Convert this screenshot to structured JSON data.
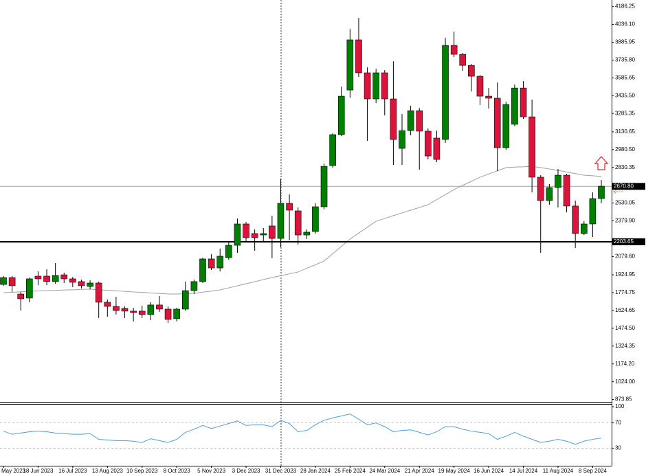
{
  "chart_data": [
    {
      "type": "candlestick",
      "categories": [
        "May 2023",
        null,
        null,
        null,
        "18 Jun 2023",
        null,
        null,
        null,
        "16 Jul 2023",
        null,
        null,
        null,
        "13 Aug 2023",
        null,
        null,
        null,
        "10 Sep 2023",
        null,
        null,
        null,
        "8 Oct 2023",
        null,
        null,
        null,
        "5 Nov 2023",
        null,
        null,
        null,
        "3 Dec 2023",
        null,
        null,
        null,
        "31 Dec 2023",
        null,
        null,
        null,
        "28 Jan 2024",
        null,
        null,
        null,
        "25 Feb 2024",
        null,
        null,
        null,
        "24 Mar 2024",
        null,
        null,
        null,
        "21 Apr 2024",
        null,
        null,
        null,
        "19 May 2024",
        null,
        null,
        null,
        "16 Jun 2024",
        null,
        null,
        null,
        "14 Jul 2024",
        null,
        null,
        null,
        "11 Aug 2024",
        null,
        null,
        null,
        "8 Sep 2024",
        null
      ],
      "open": [
        1844,
        1902,
        1763,
        1729,
        1914,
        1914,
        1868,
        1925,
        1891,
        1868,
        1827,
        1856,
        1694,
        1659,
        1642,
        1619,
        1619,
        1590,
        1671,
        1636,
        1555,
        1636,
        1792,
        1868,
        2059,
        1983,
        2070,
        2174,
        2354,
        2273,
        2261,
        2337,
        2232,
        2528,
        2464,
        2261,
        2290,
        2499,
        2846,
        3107,
        3483,
        3906,
        3628,
        3408,
        3628,
        3408,
        2991,
        3141,
        3309,
        3136,
        3078,
        3066,
        3859,
        3784,
        3691,
        3599,
        3431,
        3414,
        2997,
        3194,
        3500,
        3257,
        2748,
        2551,
        2661,
        2765,
        2505,
        2273,
        2354,
        2568
      ],
      "high": [
        1914,
        1914,
        1781,
        1902,
        1954,
        1972,
        2024,
        1943,
        1908,
        1885,
        1879,
        1868,
        1717,
        1740,
        1659,
        1648,
        1665,
        1694,
        1746,
        1659,
        1648,
        1868,
        1885,
        2070,
        2099,
        2146,
        2203,
        2400,
        2371,
        2308,
        2319,
        2423,
        2736,
        2603,
        2493,
        2308,
        2528,
        2864,
        3118,
        3512,
        3998,
        4091,
        3674,
        3662,
        3651,
        3726,
        3280,
        3350,
        3332,
        3159,
        3141,
        3923,
        3975,
        3796,
        3703,
        3610,
        3500,
        3547,
        3385,
        3529,
        3558,
        3402,
        2765,
        2690,
        2817,
        2777,
        2551,
        2377,
        2620,
        2725
      ],
      "low": [
        1833,
        1781,
        1624,
        1694,
        1839,
        1839,
        1850,
        1856,
        1821,
        1810,
        1804,
        1561,
        1572,
        1590,
        1561,
        1532,
        1561,
        1543,
        1613,
        1520,
        1532,
        1624,
        1763,
        1856,
        1966,
        1954,
        2053,
        2111,
        2203,
        2128,
        2203,
        2064,
        2157,
        2215,
        2180,
        2227,
        2273,
        2476,
        2829,
        3095,
        3419,
        3593,
        3055,
        3373,
        3269,
        2852,
        2852,
        3101,
        2811,
        2898,
        2875,
        3037,
        3761,
        3645,
        3471,
        3356,
        3327,
        2800,
        2979,
        3176,
        3240,
        2620,
        2111,
        2516,
        2493,
        2452,
        2151,
        2261,
        2244,
        2528
      ],
      "close": [
        1902,
        1833,
        1723,
        1891,
        1891,
        1868,
        1920,
        1891,
        1862,
        1833,
        1856,
        1694,
        1659,
        1624,
        1619,
        1607,
        1590,
        1671,
        1636,
        1549,
        1636,
        1792,
        1868,
        2059,
        1983,
        2082,
        2174,
        2354,
        2238,
        2238,
        2273,
        2232,
        2528,
        2470,
        2261,
        2285,
        2499,
        2840,
        3107,
        3431,
        3906,
        3628,
        3408,
        3628,
        3408,
        3066,
        3141,
        3309,
        3136,
        2927,
        2898,
        3859,
        3784,
        3691,
        3599,
        3431,
        3414,
        2997,
        3361,
        3500,
        3257,
        2748,
        2551,
        2661,
        2765,
        2505,
        2273,
        2354,
        2568,
        2672
      ],
      "up_color": "#008000",
      "down_color": "#dc143c",
      "lines": [
        {
          "color": "#a0a0a0",
          "values": [
            1775,
            1778,
            1782,
            1785,
            1789,
            1792,
            1794,
            1797,
            1799,
            1802,
            1804,
            1799,
            1795,
            1790,
            1786,
            1781,
            1777,
            1772,
            1768,
            1763,
            1763,
            1766,
            1769,
            1779,
            1788,
            1798,
            1815,
            1833,
            1850,
            1867,
            1885,
            1902,
            1918,
            1933,
            1949,
            1980,
            2010,
            2041,
            2103,
            2165,
            2227,
            2277,
            2327,
            2377,
            2400,
            2424,
            2447,
            2470,
            2493,
            2516,
            2559,
            2601,
            2644,
            2679,
            2713,
            2748,
            2775,
            2802,
            2829,
            2833,
            2836,
            2840,
            2829,
            2817,
            2806,
            2792,
            2779,
            2765,
            2760,
            2754
          ]
        }
      ],
      "levels": [
        {
          "value": 2670.8,
          "label": "2670.80",
          "color": "#a0a0a0",
          "width": 1
        },
        {
          "value": 2203.65,
          "label": "2203.65",
          "color": "#000000",
          "width": 2
        }
      ],
      "ylim": [
        854,
        4242
      ],
      "yticks": [
        4186.25,
        {
          "value": 4036.1,
          "label": "4036.10"
        },
        3885.95,
        {
          "value": 3735.8,
          "label": "3735.80"
        },
        3585.65,
        {
          "value": 3435.5,
          "label": "3435.50"
        },
        3285.35,
        3130.65,
        {
          "value": 2980.5,
          "label": "2980.50"
        },
        2830.35,
        2530.05,
        {
          "value": 2379.9,
          "label": "2379.90"
        },
        {
          "value": 2079.6,
          "label": "2079.60"
        },
        1924.95,
        1774.75,
        1624.65,
        {
          "value": 1474.5,
          "label": "1474.50"
        },
        1324.35,
        {
          "value": 1174.2,
          "label": "1174.20"
        },
        {
          "value": 1024,
          "label": "1024.00"
        },
        873.85
      ],
      "grid": false
    },
    {
      "type": "line",
      "color": "#4a9fdc",
      "values": [
        57,
        52,
        54,
        56,
        57,
        56,
        54,
        53,
        52,
        52,
        53,
        44,
        43,
        42,
        42,
        41,
        39,
        45,
        42,
        39,
        44,
        55,
        60,
        66,
        61,
        65,
        69,
        73,
        66,
        67,
        67,
        64,
        74,
        69,
        56,
        58,
        67,
        74,
        78,
        81,
        84,
        76,
        67,
        70,
        64,
        56,
        58,
        59,
        55,
        51,
        56,
        64,
        64,
        60,
        57,
        55,
        53,
        44,
        49,
        55,
        49,
        44,
        39,
        41,
        44,
        41,
        36,
        41,
        44,
        46
      ],
      "ylim": [
        0,
        100
      ],
      "yticks": [
        100,
        70,
        30
      ],
      "grid": true
    }
  ]
}
